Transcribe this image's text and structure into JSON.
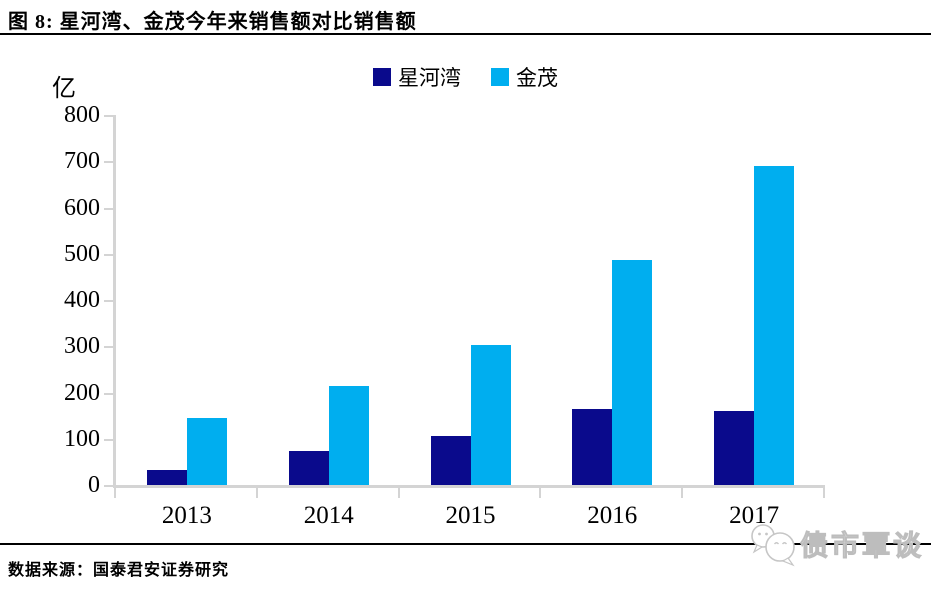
{
  "header": {
    "title": "图 8: 星河湾、金茂今年来销售额对比销售额"
  },
  "footer": {
    "source": "数据来源：国泰君安证券研究",
    "watermark": "债市覃谈"
  },
  "colors": {
    "series_dark": "#0a0a8c",
    "series_light": "#00aeef",
    "axis": "#d4d4d4",
    "rule": "#000000",
    "watermark_gray": "#bdbdbd"
  },
  "chart_data": {
    "type": "bar",
    "title": "图 8: 星河湾、金茂今年来销售额对比销售额",
    "unit_label": "亿",
    "categories": [
      "2013",
      "2014",
      "2015",
      "2016",
      "2017"
    ],
    "series": [
      {
        "name": "星河湾",
        "color": "#0a0a8c",
        "values": [
          33,
          73,
          107,
          165,
          160
        ]
      },
      {
        "name": "金茂",
        "color": "#00aeef",
        "values": [
          145,
          215,
          303,
          487,
          690
        ]
      }
    ],
    "xlabel": "",
    "ylabel": "亿",
    "ylim": [
      0,
      800
    ],
    "ytick_step": 100,
    "yticks": [
      0,
      100,
      200,
      300,
      400,
      500,
      600,
      700,
      800
    ],
    "legend_position": "top-center",
    "grid": false,
    "source_note": "数据来源：国泰君安证券研究"
  }
}
